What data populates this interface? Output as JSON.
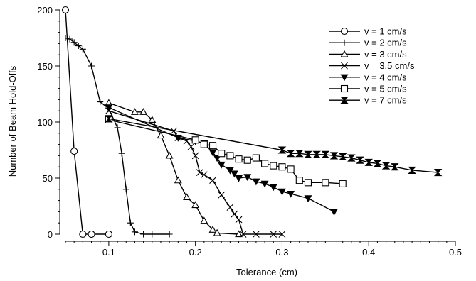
{
  "chart_data": {
    "type": "line",
    "title": "",
    "xlabel": "Tolerance (cm)",
    "ylabel": "Number of Beam Hold-Offs",
    "xlim": [
      0.05,
      0.5
    ],
    "ylim": [
      0,
      200
    ],
    "xticks": [
      "0.1",
      "0.2",
      "0.3",
      "0.4",
      "0.5"
    ],
    "yticks": [
      "0",
      "50",
      "100",
      "150",
      "200"
    ],
    "legend_position": "top-right",
    "series": [
      {
        "name": "v = 1 cm/s",
        "marker": "circle",
        "x": [
          0.05,
          0.06,
          0.07,
          0.08,
          0.1
        ],
        "y": [
          200,
          74,
          0,
          0,
          0
        ]
      },
      {
        "name": "v = 2 cm/s",
        "marker": "plus",
        "x": [
          0.05,
          0.055,
          0.06,
          0.065,
          0.07,
          0.08,
          0.09,
          0.1,
          0.11,
          0.115,
          0.12,
          0.125,
          0.13,
          0.14,
          0.15,
          0.17
        ],
        "y": [
          175,
          174,
          171,
          168,
          165,
          150,
          118,
          112,
          95,
          72,
          40,
          10,
          2,
          0,
          0,
          0
        ]
      },
      {
        "name": "v = 3 cm/s",
        "marker": "triangle",
        "x": [
          0.1,
          0.13,
          0.14,
          0.15,
          0.16,
          0.17,
          0.18,
          0.19,
          0.2,
          0.21,
          0.22,
          0.225,
          0.25
        ],
        "y": [
          117,
          109,
          109,
          102,
          88,
          70,
          48,
          33,
          26,
          12,
          4,
          1,
          0
        ]
      },
      {
        "name": "v = 3.5 cm/s",
        "marker": "x",
        "x": [
          0.1,
          0.175,
          0.18,
          0.19,
          0.195,
          0.2,
          0.205,
          0.21,
          0.22,
          0.23,
          0.24,
          0.245,
          0.25,
          0.255,
          0.27,
          0.29,
          0.3
        ],
        "y": [
          110,
          92,
          86,
          83,
          78,
          70,
          55,
          53,
          48,
          35,
          24,
          18,
          13,
          0,
          0,
          0,
          0
        ]
      },
      {
        "name": "v = 4 cm/s",
        "marker": "filled-triangle-down",
        "x": [
          0.1,
          0.18,
          0.2,
          0.21,
          0.22,
          0.225,
          0.23,
          0.24,
          0.245,
          0.25,
          0.26,
          0.27,
          0.28,
          0.29,
          0.3,
          0.31,
          0.33,
          0.36
        ],
        "y": [
          113,
          86,
          83,
          81,
          73,
          68,
          62,
          57,
          54,
          50,
          51,
          47,
          45,
          42,
          38,
          36,
          32,
          20
        ]
      },
      {
        "name": "v = 5 cm/s",
        "marker": "square",
        "x": [
          0.1,
          0.2,
          0.21,
          0.22,
          0.23,
          0.24,
          0.25,
          0.26,
          0.27,
          0.28,
          0.29,
          0.3,
          0.31,
          0.32,
          0.33,
          0.35,
          0.37
        ],
        "y": [
          102,
          84,
          80,
          79,
          72,
          70,
          67,
          66,
          68,
          63,
          61,
          60,
          58,
          48,
          46,
          46,
          45
        ]
      },
      {
        "name": "v = 7 cm/s",
        "marker": "bowtie",
        "x": [
          0.1,
          0.3,
          0.31,
          0.32,
          0.33,
          0.34,
          0.35,
          0.36,
          0.37,
          0.38,
          0.39,
          0.4,
          0.41,
          0.42,
          0.43,
          0.45,
          0.48
        ],
        "y": [
          103,
          75,
          72,
          72,
          71,
          71,
          71,
          70,
          69,
          68,
          66,
          64,
          63,
          61,
          60,
          57,
          55
        ]
      }
    ]
  }
}
